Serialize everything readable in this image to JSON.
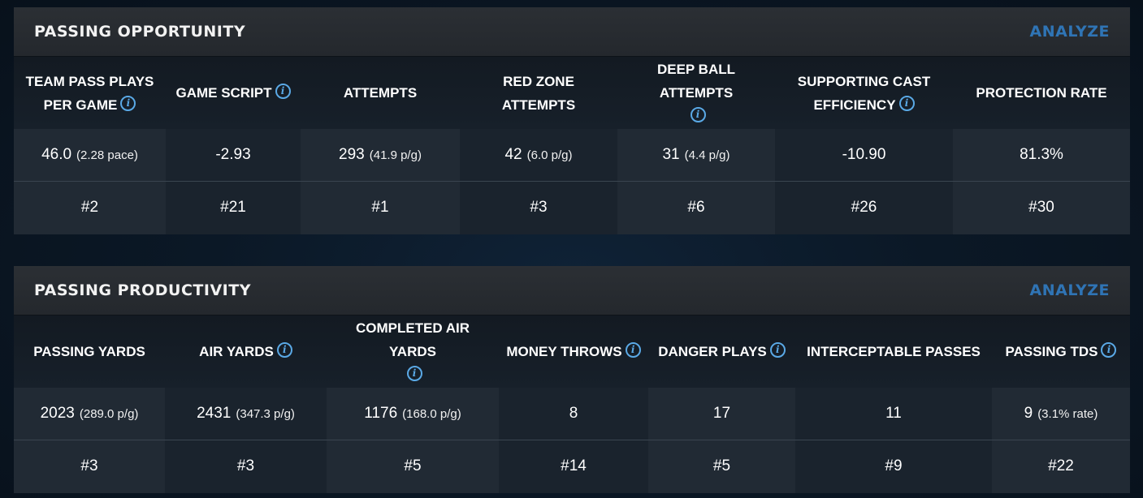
{
  "opportunity": {
    "title": "PASSING OPPORTUNITY",
    "analyze_label": "ANALYZE",
    "columns": [
      {
        "lines": [
          "TEAM PASS PLAYS",
          "PER GAME"
        ],
        "info": true,
        "value": "46.0",
        "sub": "(2.28 pace)",
        "rank": "#2"
      },
      {
        "lines": [
          "GAME SCRIPT"
        ],
        "info": true,
        "value": "-2.93",
        "sub": "",
        "rank": "#21"
      },
      {
        "lines": [
          "ATTEMPTS"
        ],
        "info": false,
        "value": "293",
        "sub": "(41.9 p/g)",
        "rank": "#1"
      },
      {
        "lines": [
          "RED ZONE ATTEMPTS"
        ],
        "info": false,
        "value": "42",
        "sub": "(6.0 p/g)",
        "rank": "#3"
      },
      {
        "lines": [
          "DEEP BALL ATTEMPTS"
        ],
        "info": true,
        "value": "31",
        "sub": "(4.4 p/g)",
        "rank": "#6"
      },
      {
        "lines": [
          "SUPPORTING CAST",
          "EFFICIENCY"
        ],
        "info": true,
        "value": "-10.90",
        "sub": "",
        "rank": "#26"
      },
      {
        "lines": [
          "PROTECTION RATE"
        ],
        "info": false,
        "value": "81.3%",
        "sub": "",
        "rank": "#30"
      }
    ]
  },
  "productivity": {
    "title": "PASSING PRODUCTIVITY",
    "analyze_label": "ANALYZE",
    "columns": [
      {
        "lines": [
          "PASSING YARDS"
        ],
        "info": false,
        "value": "2023",
        "sub": "(289.0 p/g)",
        "rank": "#3"
      },
      {
        "lines": [
          "AIR YARDS"
        ],
        "info": true,
        "value": "2431",
        "sub": "(347.3 p/g)",
        "rank": "#3"
      },
      {
        "lines": [
          "COMPLETED AIR YARDS"
        ],
        "info": true,
        "value": "1176",
        "sub": "(168.0 p/g)",
        "rank": "#5"
      },
      {
        "lines": [
          "MONEY THROWS"
        ],
        "info": true,
        "value": "8",
        "sub": "",
        "rank": "#14"
      },
      {
        "lines": [
          "DANGER PLAYS"
        ],
        "info": true,
        "value": "17",
        "sub": "",
        "rank": "#5"
      },
      {
        "lines": [
          "INTERCEPTABLE PASSES"
        ],
        "info": false,
        "value": "11",
        "sub": "",
        "rank": "#9"
      },
      {
        "lines": [
          "PASSING TDS"
        ],
        "info": true,
        "value": "9",
        "sub": "(3.1% rate)",
        "rank": "#22"
      }
    ]
  },
  "icons": {
    "info": "info-icon"
  },
  "colors": {
    "accent": "#2f74b5",
    "info": "#5aa9e6"
  }
}
